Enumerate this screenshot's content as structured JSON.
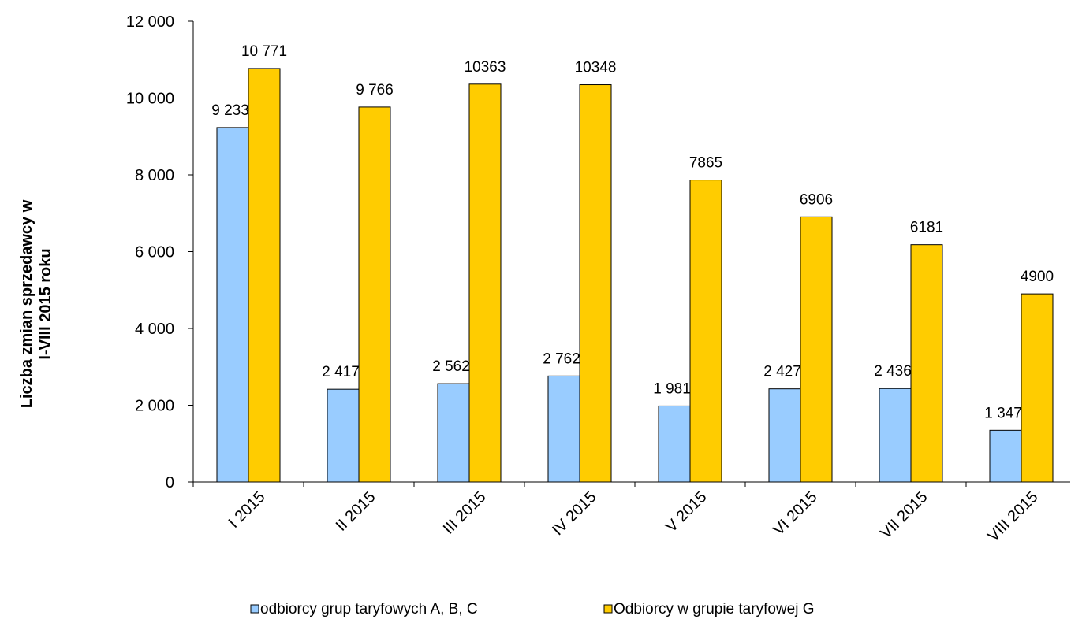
{
  "chart_data": {
    "type": "bar",
    "title": "",
    "xlabel": "",
    "ylabel_lines": [
      "Liczba zmian sprzedawcy w",
      "I-VIII  2015 roku"
    ],
    "categories": [
      "I 2015",
      "II 2015",
      "III 2015",
      "IV  2015",
      "V  2015",
      "VI 2015",
      "VII 2015",
      "VIII 2015"
    ],
    "ylim": [
      0,
      12000
    ],
    "yticks": [
      0,
      2000,
      4000,
      6000,
      8000,
      10000,
      12000
    ],
    "ytick_labels": [
      "0",
      "2 000",
      "4 000",
      "6 000",
      "8 000",
      "10 000",
      "12 000"
    ],
    "grid": false,
    "legend_position": "bottom",
    "series": [
      {
        "name": "odbiorcy grup taryfowych A, B, C",
        "color": "#99CCFF",
        "values": [
          9233,
          2417,
          2562,
          2762,
          1981,
          2427,
          2436,
          1347
        ],
        "labels": [
          "9 233",
          "2 417",
          "2 562",
          "2 762",
          "1 981",
          "2 427",
          "2 436",
          "1 347"
        ]
      },
      {
        "name": "Odbiorcy w grupie taryfowej G",
        "color": "#FFCC00",
        "values": [
          10771,
          9766,
          10363,
          10348,
          7865,
          6906,
          6181,
          4900
        ],
        "labels": [
          "10 771",
          "9 766",
          "10363",
          "10348",
          "7865",
          "6906",
          "6181",
          "4900"
        ]
      }
    ]
  }
}
